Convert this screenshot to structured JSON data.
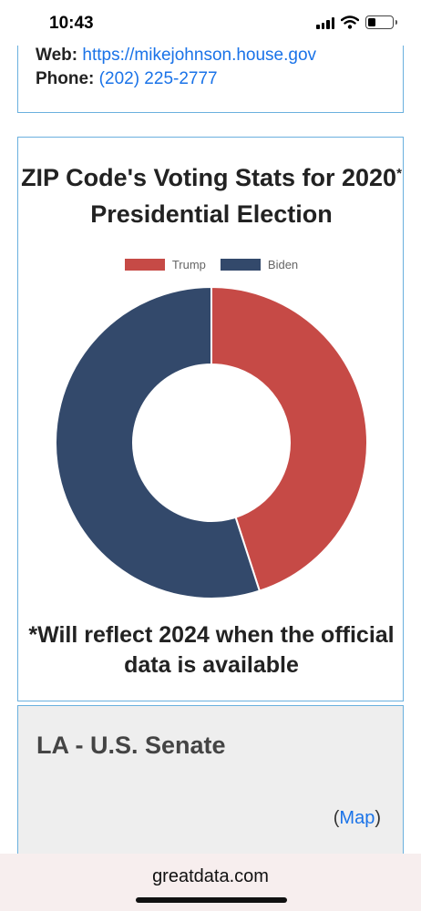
{
  "status_bar": {
    "time": "10:43"
  },
  "contact": {
    "web_label": "Web:",
    "web_url": "https://mikejohnson.house.gov",
    "phone_label": "Phone:",
    "phone": "(202) 225-2777"
  },
  "chart_section": {
    "title_part1": "ZIP Code's Voting Stats for 2020",
    "title_sup": "*",
    "title_part2": " Presidential Election",
    "note": "*Will reflect 2024 when the official data is available"
  },
  "chart_data": {
    "type": "pie",
    "donut": true,
    "labels": [
      "Trump",
      "Biden"
    ],
    "values": [
      45,
      55
    ],
    "colors": [
      "#c64a46",
      "#33496b"
    ],
    "legend_position": "top"
  },
  "senate": {
    "title": "LA - U.S. Senate",
    "map_open": "(",
    "map_label": "Map",
    "map_close": ")"
  },
  "browser": {
    "url": "greatdata.com"
  }
}
